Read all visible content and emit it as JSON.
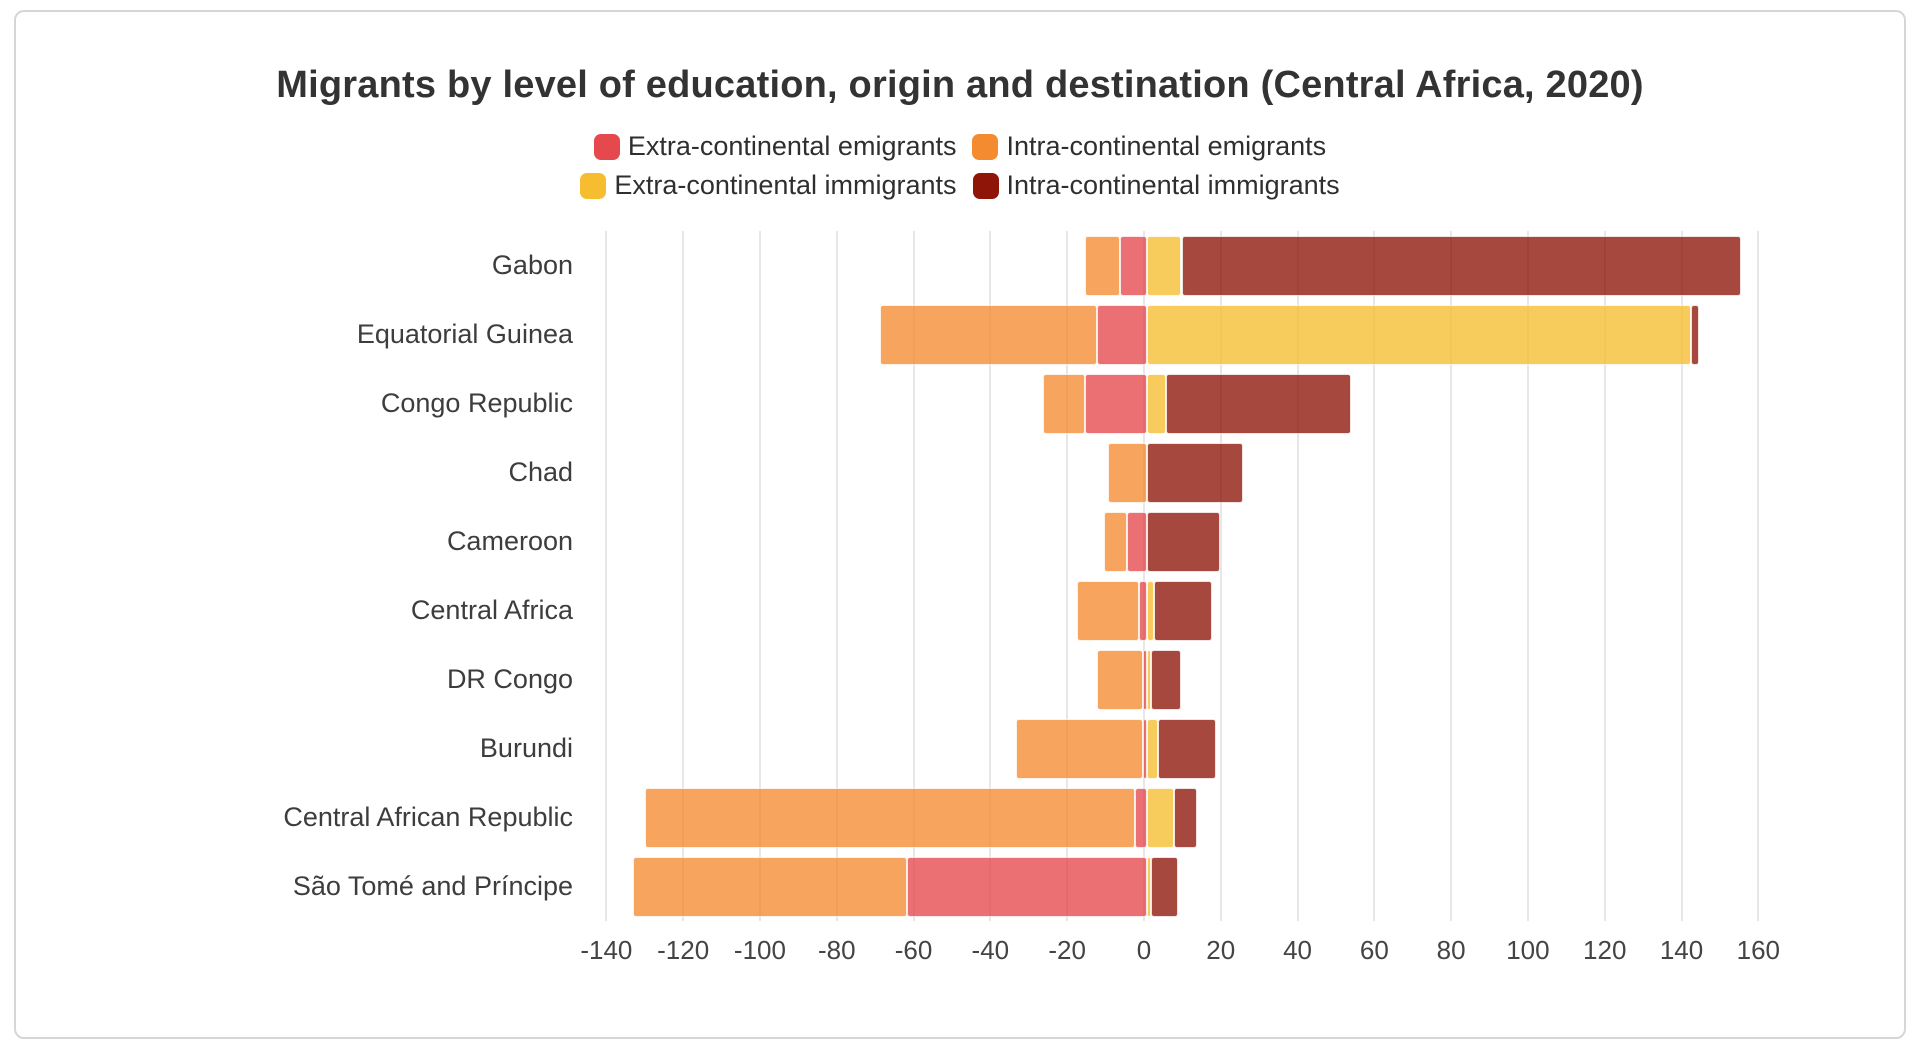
{
  "chart_data": {
    "type": "bar",
    "orientation": "horizontal",
    "diverging": true,
    "title": "Migrants by level of education, origin and destination (Central Africa, 2020)",
    "legend_position": "top-center",
    "grid": true,
    "grid_color": "#e7e7e7",
    "bar_opacity": 0.78,
    "categories": [
      "Gabon",
      "Equatorial Guinea",
      "Congo Republic",
      "Chad",
      "Cameroon",
      "Central Africa",
      "DR Congo",
      "Burundi",
      "Central African Republic",
      "São Tomé and Príncipe"
    ],
    "series": [
      {
        "name": "Extra-continental emigrants",
        "color": "#e5484d",
        "values": [
          -7,
          -13,
          -16,
          0,
          -5,
          -2,
          -1,
          -1,
          -3,
          -62
        ]
      },
      {
        "name": "Intra-continental emigrants",
        "color": "#f58b31",
        "values": [
          -9,
          -56,
          -11,
          -10,
          -6,
          -16,
          -12,
          -33,
          -127,
          -71
        ]
      },
      {
        "name": "Extra-continental immigrants",
        "color": "#f7bd30",
        "values": [
          9,
          141,
          5,
          0,
          0,
          2,
          1,
          3,
          7,
          1
        ]
      },
      {
        "name": "Intra-continental immigrants",
        "color": "#8e1507",
        "values": [
          145,
          2,
          48,
          25,
          19,
          15,
          8,
          15,
          6,
          7
        ]
      }
    ],
    "xticks": [
      -140,
      -120,
      -100,
      -80,
      -60,
      -40,
      -20,
      0,
      20,
      40,
      60,
      80,
      100,
      120,
      140,
      160
    ],
    "xlim": [
      -144,
      162
    ]
  }
}
